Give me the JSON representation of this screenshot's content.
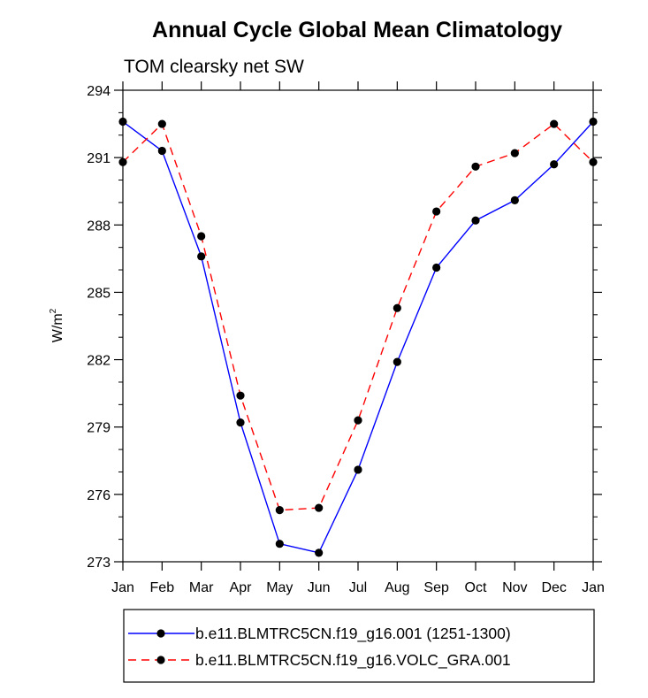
{
  "chart_data": {
    "type": "line",
    "title": "Annual Cycle Global Mean Climatology",
    "subtitle": "TOM clearsky net SW",
    "ylabel": "W/m",
    "ylabel_sup": "2",
    "xlabel": "",
    "ylim": [
      273,
      294
    ],
    "yticks": [
      "273",
      "276",
      "279",
      "282",
      "285",
      "288",
      "291",
      "294"
    ],
    "categories": [
      "Jan",
      "Feb",
      "Mar",
      "Apr",
      "May",
      "Jun",
      "Jul",
      "Aug",
      "Sep",
      "Oct",
      "Nov",
      "Dec",
      "Jan"
    ],
    "grid": false,
    "legend_position": "bottom",
    "series": [
      {
        "name": "b.e11.BLMTRC5CN.f19_g16.001 (1251-1300)",
        "color": "#0000ff",
        "dash": "solid",
        "marker": "filled-circle",
        "values": [
          292.6,
          291.3,
          286.6,
          279.2,
          273.8,
          273.4,
          277.1,
          281.9,
          286.1,
          288.2,
          289.1,
          290.7,
          292.6
        ]
      },
      {
        "name": "b.e11.BLMTRC5CN.f19_g16.VOLC_GRA.001",
        "color": "#ff0000",
        "dash": "dashed",
        "marker": "filled-circle",
        "values": [
          290.8,
          292.5,
          287.5,
          280.4,
          275.3,
          275.4,
          279.3,
          284.3,
          288.6,
          290.6,
          291.2,
          292.5,
          290.8
        ]
      }
    ]
  }
}
